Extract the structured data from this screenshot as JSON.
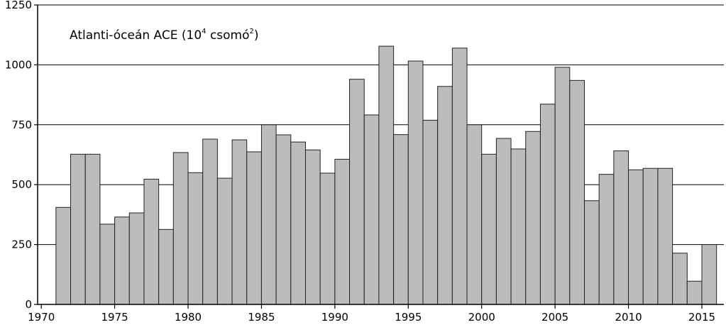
{
  "chart_data": {
    "type": "bar",
    "title_main": "Atlanti-óceán ACE (10",
    "title_exp": "4",
    "title_unit": " csomó",
    "title_unit_exp": "2",
    "title_close": ")",
    "ylim": [
      0,
      1250
    ],
    "yticks": [
      0,
      250,
      500,
      750,
      1000,
      1250
    ],
    "xtick_labels": [
      1970,
      1975,
      1980,
      1985,
      1990,
      1995,
      2000,
      2005,
      2010,
      2015
    ],
    "grid": true,
    "years": [
      1971,
      1972,
      1973,
      1974,
      1975,
      1976,
      1977,
      1978,
      1979,
      1980,
      1981,
      1982,
      1983,
      1984,
      1985,
      1986,
      1987,
      1988,
      1989,
      1990,
      1991,
      1992,
      1993,
      1994,
      1995,
      1996,
      1997,
      1998,
      1999,
      2000,
      2001,
      2002,
      2003,
      2004,
      2005,
      2006,
      2007,
      2008,
      2009,
      2010,
      2011,
      2012,
      2013,
      2014,
      2015
    ],
    "values": [
      405,
      627,
      627,
      335,
      365,
      382,
      523,
      313,
      634,
      550,
      690,
      527,
      687,
      637,
      750,
      708,
      678,
      645,
      548,
      606,
      940,
      791,
      1078,
      709,
      1016,
      769,
      910,
      1070,
      750,
      627,
      693,
      649,
      722,
      836,
      990,
      935,
      433,
      543,
      641,
      562,
      568,
      568,
      214,
      97,
      250
    ]
  },
  "colors": {
    "bar_fill": "#bcbcbc",
    "bar_stroke": "#222222",
    "grid": "#000000"
  }
}
